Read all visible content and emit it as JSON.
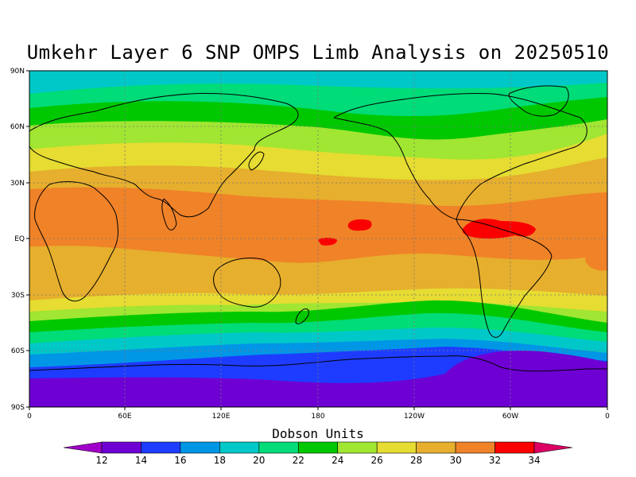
{
  "title": "Umkehr Layer 6 SNP OMPS Limb Analysis on 20250510",
  "colorbar": {
    "label": "Dobson Units",
    "ticks": [
      "12",
      "14",
      "16",
      "18",
      "20",
      "22",
      "24",
      "26",
      "28",
      "30",
      "32",
      "34"
    ],
    "colors": [
      "#a000c8",
      "#6e00d4",
      "#1e3cff",
      "#0096e6",
      "#00c8c8",
      "#00dc78",
      "#00c800",
      "#a0e632",
      "#e6dc32",
      "#e6af2d",
      "#f08228",
      "#fa0000",
      "#dc0064"
    ]
  },
  "axes": {
    "lat_labels": [
      "90N",
      "60N",
      "30N",
      "EQ",
      "30S",
      "60S",
      "90S"
    ],
    "lon_labels": [
      "0",
      "60E",
      "120E",
      "180",
      "120W",
      "60W",
      "0"
    ]
  },
  "chart_data": {
    "type": "heatmap",
    "title": "Umkehr Layer 6 SNP OMPS Limb Analysis on 20250510",
    "units": "Dobson Units",
    "x_range": [
      "0",
      "360"
    ],
    "y_range": [
      "90S",
      "90N"
    ],
    "zonal_mean_profile": [
      {
        "lat": 85,
        "du": 20
      },
      {
        "lat": 75,
        "du": 22
      },
      {
        "lat": 65,
        "du": 24
      },
      {
        "lat": 55,
        "du": 26
      },
      {
        "lat": 45,
        "du": 28
      },
      {
        "lat": 35,
        "du": 30
      },
      {
        "lat": 20,
        "du": 31
      },
      {
        "lat": 0,
        "du": 31
      },
      {
        "lat": -15,
        "du": 30
      },
      {
        "lat": -25,
        "du": 29
      },
      {
        "lat": -35,
        "du": 27
      },
      {
        "lat": -42,
        "du": 25
      },
      {
        "lat": -48,
        "du": 23
      },
      {
        "lat": -55,
        "du": 21
      },
      {
        "lat": -62,
        "du": 18
      },
      {
        "lat": -68,
        "du": 16
      },
      {
        "lat": -75,
        "du": 14
      },
      {
        "lat": -85,
        "du": 13
      }
    ],
    "local_maxima_du": 32
  }
}
